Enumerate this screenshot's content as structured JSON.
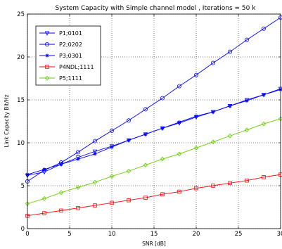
{
  "chart_data": {
    "type": "line",
    "title": "System Capacity with Simple channel model , Iterations = 50 k",
    "xlabel": "SNR [dB]",
    "ylabel": "Link  Capacity Bit/Hz",
    "xlim": [
      0,
      30
    ],
    "ylim": [
      0,
      25
    ],
    "xticks": [
      0,
      5,
      10,
      15,
      20,
      25,
      30
    ],
    "yticks": [
      0,
      5,
      10,
      15,
      20,
      25
    ],
    "grid": true,
    "legend_position": "top-left",
    "x": [
      0,
      2,
      4,
      6,
      8,
      10,
      12,
      14,
      16,
      18,
      20,
      22,
      24,
      26,
      28,
      30
    ],
    "series": [
      {
        "name": "P1;0101",
        "color": "#0000ff",
        "marker": "triangle-down",
        "values": [
          6.2,
          6.6,
          7.5,
          8.3,
          9.0,
          9.6,
          10.3,
          11.0,
          11.7,
          12.3,
          13.0,
          13.6,
          14.3,
          15.0,
          15.6,
          16.3
        ]
      },
      {
        "name": "P2;0202",
        "color": "#0000ff",
        "marker": "circle",
        "values": [
          5.5,
          6.8,
          7.7,
          8.9,
          10.2,
          11.4,
          12.6,
          13.9,
          15.2,
          16.6,
          17.9,
          19.3,
          20.6,
          22.0,
          23.3,
          24.6
        ]
      },
      {
        "name": "P3;0301",
        "color": "#0000ff",
        "marker": "star",
        "values": [
          6.3,
          6.9,
          7.5,
          8.1,
          8.7,
          9.5,
          10.3,
          11.0,
          11.7,
          12.4,
          13.1,
          13.6,
          14.3,
          14.9,
          15.6,
          16.2
        ]
      },
      {
        "name": "P4NDL;1111",
        "color": "#ff0000",
        "marker": "square",
        "values": [
          1.5,
          1.8,
          2.1,
          2.4,
          2.7,
          3.0,
          3.3,
          3.6,
          4.0,
          4.3,
          4.7,
          5.0,
          5.3,
          5.6,
          6.0,
          6.3
        ]
      },
      {
        "name": "P5;1111",
        "color": "#66cc00",
        "marker": "diamond",
        "values": [
          2.9,
          3.5,
          4.2,
          4.8,
          5.4,
          6.1,
          6.7,
          7.4,
          8.1,
          8.7,
          9.4,
          10.1,
          10.8,
          11.5,
          12.2,
          12.8
        ]
      }
    ]
  }
}
